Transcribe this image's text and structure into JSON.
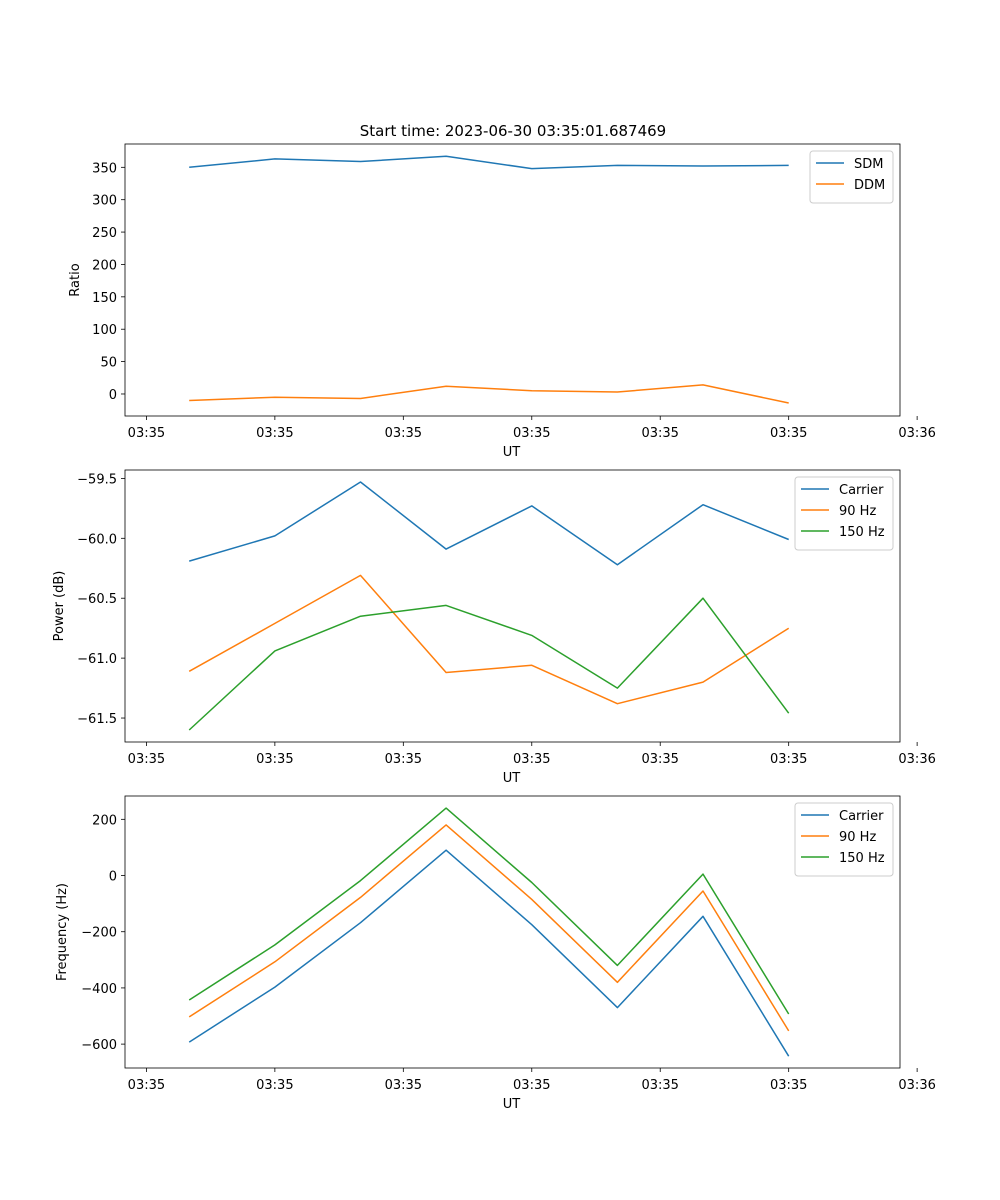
{
  "title": "Start time: 2023-06-30 03:35:01.687469",
  "chart_data": [
    {
      "type": "line",
      "ylabel": "Ratio",
      "xlabel": "UT",
      "xlim": [
        -0.125,
        4.4
      ],
      "ylim": [
        -34,
        386
      ],
      "x": [
        0.25,
        0.75,
        1.25,
        1.75,
        2.25,
        2.75,
        3.25,
        3.75
      ],
      "xticks": [
        0,
        0.75,
        1.5,
        2.25,
        3.0,
        3.75,
        4.5
      ],
      "xtick_labels": [
        "03:35",
        "03:35",
        "03:35",
        "03:35",
        "03:35",
        "03:35",
        "03:36"
      ],
      "yticks": [
        0,
        50,
        100,
        150,
        200,
        250,
        300,
        350
      ],
      "ytick_labels": [
        "0",
        "50",
        "100",
        "150",
        "200",
        "250",
        "300",
        "350"
      ],
      "legend_position": "top-right",
      "grid": false,
      "series": [
        {
          "name": "SDM",
          "color": "#1f77b4",
          "values": [
            350,
            363,
            359,
            367,
            348,
            353,
            352,
            353
          ]
        },
        {
          "name": "DDM",
          "color": "#ff7f0e",
          "values": [
            -10,
            -5,
            -7,
            12,
            5,
            3,
            14,
            -14
          ]
        }
      ]
    },
    {
      "type": "line",
      "ylabel": "Power (dB)",
      "xlabel": "UT",
      "xlim": [
        -0.125,
        4.4
      ],
      "ylim": [
        -61.7,
        -59.43
      ],
      "x": [
        0.25,
        0.75,
        1.25,
        1.75,
        2.25,
        2.75,
        3.25,
        3.75
      ],
      "xticks": [
        0,
        0.75,
        1.5,
        2.25,
        3.0,
        3.75,
        4.5
      ],
      "xtick_labels": [
        "03:35",
        "03:35",
        "03:35",
        "03:35",
        "03:35",
        "03:35",
        "03:36"
      ],
      "yticks": [
        -61.5,
        -61.0,
        -60.5,
        -60.0,
        -59.5
      ],
      "ytick_labels": [
        "−61.5",
        "−61.0",
        "−60.5",
        "−60.0",
        "−59.5"
      ],
      "legend_position": "top-right",
      "grid": false,
      "series": [
        {
          "name": "Carrier",
          "color": "#1f77b4",
          "values": [
            -60.19,
            -59.98,
            -59.53,
            -60.09,
            -59.73,
            -60.22,
            -59.72,
            -60.01
          ]
        },
        {
          "name": "90 Hz",
          "color": "#ff7f0e",
          "values": [
            -61.11,
            -60.71,
            -60.31,
            -61.12,
            -61.06,
            -61.38,
            -61.2,
            -60.75
          ]
        },
        {
          "name": "150 Hz",
          "color": "#2ca02c",
          "values": [
            -61.6,
            -60.94,
            -60.65,
            -60.56,
            -60.81,
            -61.25,
            -60.5,
            -61.46
          ]
        }
      ]
    },
    {
      "type": "line",
      "ylabel": "Frequency (Hz)",
      "xlabel": "UT",
      "xlim": [
        -0.125,
        4.4
      ],
      "ylim": [
        -685,
        283
      ],
      "x": [
        0.25,
        0.75,
        1.25,
        1.75,
        2.25,
        2.75,
        3.25,
        3.75
      ],
      "xticks": [
        0,
        0.75,
        1.5,
        2.25,
        3.0,
        3.75,
        4.5
      ],
      "xtick_labels": [
        "03:35",
        "03:35",
        "03:35",
        "03:35",
        "03:35",
        "03:35",
        "03:36"
      ],
      "yticks": [
        -600,
        -400,
        -200,
        0,
        200
      ],
      "ytick_labels": [
        "−600",
        "−400",
        "−200",
        "0",
        "200"
      ],
      "legend_position": "top-right",
      "grid": false,
      "series": [
        {
          "name": "Carrier",
          "color": "#1f77b4",
          "values": [
            -593,
            -397,
            -168,
            90,
            -175,
            -470,
            -145,
            -643
          ]
        },
        {
          "name": "90 Hz",
          "color": "#ff7f0e",
          "values": [
            -503,
            -307,
            -78,
            180,
            -85,
            -380,
            -55,
            -553
          ]
        },
        {
          "name": "150 Hz",
          "color": "#2ca02c",
          "values": [
            -443,
            -247,
            -18,
            240,
            -25,
            -320,
            5,
            -493
          ]
        }
      ]
    }
  ]
}
